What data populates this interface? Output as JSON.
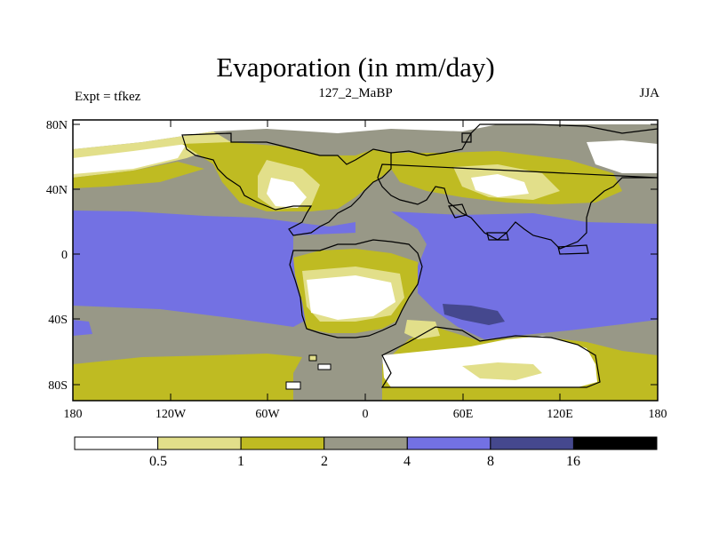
{
  "figure": {
    "title": "Evaporation (in mm/day)",
    "left_string": "Expt = tfkez",
    "center_string": "127_2_MaBP",
    "right_string": "JJA"
  },
  "axes": {
    "lat_ticks": [
      "80N",
      "40N",
      "0",
      "40S",
      "80S"
    ],
    "lon_ticks": [
      "180",
      "120W",
      "60W",
      "0",
      "60E",
      "120E",
      "180"
    ]
  },
  "colorbar": {
    "levels": [
      "0.5",
      "1",
      "2",
      "4",
      "8",
      "16"
    ],
    "colors": [
      "#ffffff",
      "#e2df8a",
      "#bfbb22",
      "#989887",
      "#7371e3",
      "#45488e",
      "#000000"
    ]
  },
  "chart_data": {
    "type": "heatmap",
    "title": "Evaporation (in mm/day)",
    "subtitle": "127_2_MaBP",
    "xlabel": "",
    "ylabel": "",
    "xlim": [
      -180,
      180
    ],
    "ylim": [
      -90,
      90
    ],
    "x_ticks": [
      "180",
      "120W",
      "60W",
      "0",
      "60E",
      "120E",
      "180"
    ],
    "y_ticks": [
      "80N",
      "40N",
      "0",
      "40S",
      "80S"
    ],
    "contour_levels": [
      0.5,
      1,
      2,
      4,
      8,
      16
    ],
    "legend": "bottom"
  }
}
